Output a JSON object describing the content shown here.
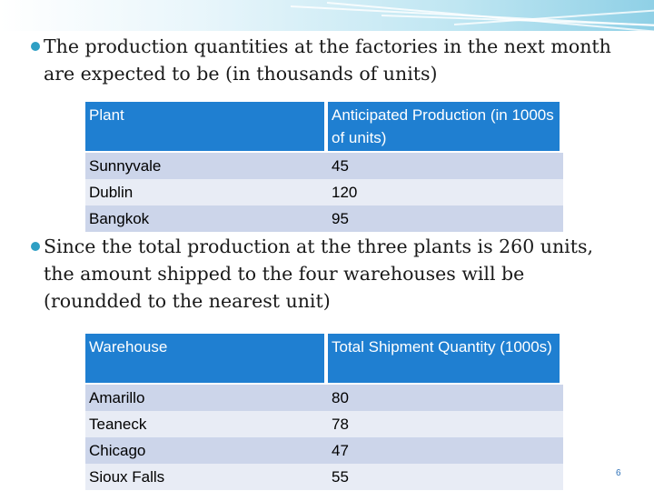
{
  "bullets": [
    "The production quantities at the factories in the next month are expected to be (in thousands of units)",
    "Since the total production at the three plants is 260 units, the amount shipped to the four warehouses will be (roundded to the nearest unit)"
  ],
  "production_table": {
    "header": [
      "Plant",
      "Anticipated Production (in 1000s of units)"
    ],
    "rows": [
      [
        "Sunnyvale",
        "45"
      ],
      [
        "Dublin",
        "120"
      ],
      [
        "Bangkok",
        "95"
      ]
    ]
  },
  "shipment_table": {
    "header": [
      "Warehouse",
      "Total Shipment Quantity (1000s)"
    ],
    "rows": [
      [
        "Amarillo",
        "80"
      ],
      [
        "Teaneck",
        "78"
      ],
      [
        "Chicago",
        "47"
      ],
      [
        "Sioux Falls",
        "55"
      ]
    ]
  },
  "page_number": "6",
  "colors": {
    "header_fill": "#1f7fd1",
    "row_dark": "#ccd5ea",
    "row_light": "#e8ecf5",
    "bullet": "#2e9fc4"
  }
}
